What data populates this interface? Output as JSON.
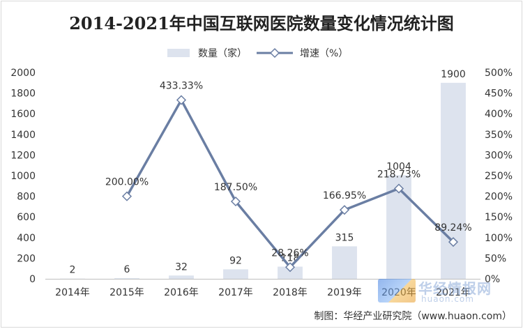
{
  "chart_data": {
    "type": "bar+line",
    "title": "2014-2021年中国互联网医院数量变化情况统计图",
    "categories": [
      "2014年",
      "2015年",
      "2016年",
      "2017年",
      "2018年",
      "2019年",
      "2020年",
      "2021年"
    ],
    "series": [
      {
        "name": "数量（家）",
        "type": "bar",
        "axis": "left",
        "values": [
          2,
          6,
          32,
          92,
          118,
          315,
          1004,
          1900
        ],
        "labels": [
          "2",
          "6",
          "32",
          "92",
          "118",
          "315",
          "1004",
          "1900"
        ],
        "color": "#dde3ee"
      },
      {
        "name": "增速（%）",
        "type": "line",
        "axis": "right",
        "values": [
          null,
          200.0,
          433.33,
          187.5,
          28.26,
          166.95,
          218.73,
          89.24
        ],
        "labels": [
          "",
          "200.00%",
          "433.33%",
          "187.50%",
          "28.26%",
          "166.95%",
          "218.73%",
          "89.24%"
        ],
        "color": "#6a7ea3"
      }
    ],
    "y_left": {
      "min": 0,
      "max": 2000,
      "step": 200,
      "ticks": [
        "0",
        "200",
        "400",
        "600",
        "800",
        "1000",
        "1200",
        "1400",
        "1600",
        "1800",
        "2000"
      ]
    },
    "y_right": {
      "min": 0,
      "max": 500,
      "step": 50,
      "ticks": [
        "0%",
        "50%",
        "100%",
        "150%",
        "200%",
        "250%",
        "300%",
        "350%",
        "400%",
        "450%",
        "500%"
      ]
    },
    "grid": false,
    "legend": "top-center"
  },
  "source": "制图：华经产业研究院（www.huaon.com）",
  "watermark": {
    "name": "华经情报网",
    "url": "huaon.com"
  }
}
